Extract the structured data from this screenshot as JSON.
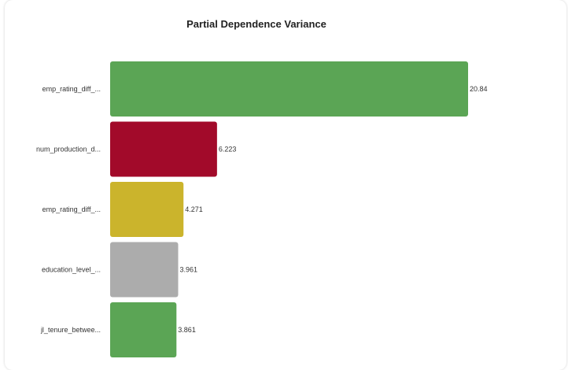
{
  "chart_data": {
    "type": "bar",
    "orientation": "horizontal",
    "title": "Partial Dependence Variance",
    "categories": [
      "emp_rating_diff_...",
      "num_production_d...",
      "emp_rating_diff_...",
      "education_level_...",
      "jl_tenure_betwee..."
    ],
    "values": [
      20.84,
      6.223,
      4.271,
      3.961,
      3.861
    ],
    "value_labels": [
      "20.84",
      "6.223",
      "4.271",
      "3.961",
      "3.861"
    ],
    "colors": [
      "#5ba555",
      "#a20a2a",
      "#cbb42c",
      "#acacac",
      "#5ba555"
    ],
    "xlim": [
      0,
      20.84
    ],
    "xlabel": "",
    "ylabel": "",
    "grid": false
  }
}
